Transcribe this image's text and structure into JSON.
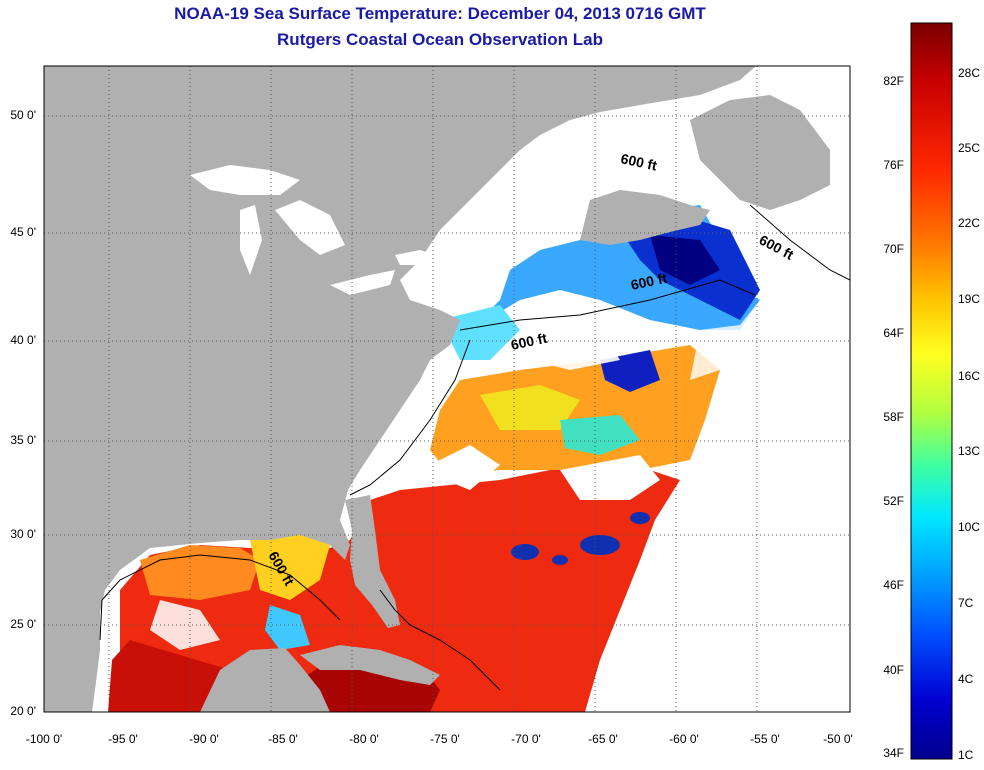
{
  "title": {
    "line1": "NOAA-19 Sea Surface Temperature:  December 04, 2013 0716 GMT",
    "line2": "Rutgers Coastal Ocean Observation Lab"
  },
  "map": {
    "y_ticks": [
      "50 0'",
      "45 0'",
      "40 0'",
      "35 0'",
      "30 0'",
      "25 0'",
      "20 0'"
    ],
    "x_ticks": [
      "-100 0'",
      "-95 0'",
      "-90 0'",
      "-85 0'",
      "-80 0'",
      "-75 0'",
      "-70 0'",
      "-65 0'",
      "-60 0'",
      "-55 0'",
      "-50 0'"
    ],
    "contour_labels": [
      "600 ft",
      "600 ft",
      "600 ft",
      "600 ft",
      "600 ft"
    ],
    "colors": {
      "land": "#b0b0b0",
      "cloud": "#ffffff",
      "contour": "#000000"
    }
  },
  "colorbar": {
    "fahrenheit": [
      "82F",
      "76F",
      "70F",
      "64F",
      "58F",
      "52F",
      "46F",
      "40F",
      "34F"
    ],
    "celsius": [
      "28C",
      "25C",
      "22C",
      "19C",
      "16C",
      "13C",
      "10C",
      "7C",
      "4C",
      "1C"
    ],
    "gradient_colors": [
      "#7a0000",
      "#c80000",
      "#ff2800",
      "#ff7800",
      "#ffc800",
      "#ffff20",
      "#b0ff40",
      "#40ffa0",
      "#00e8ff",
      "#00a0ff",
      "#0050ff",
      "#0000d0",
      "#00008c"
    ]
  }
}
